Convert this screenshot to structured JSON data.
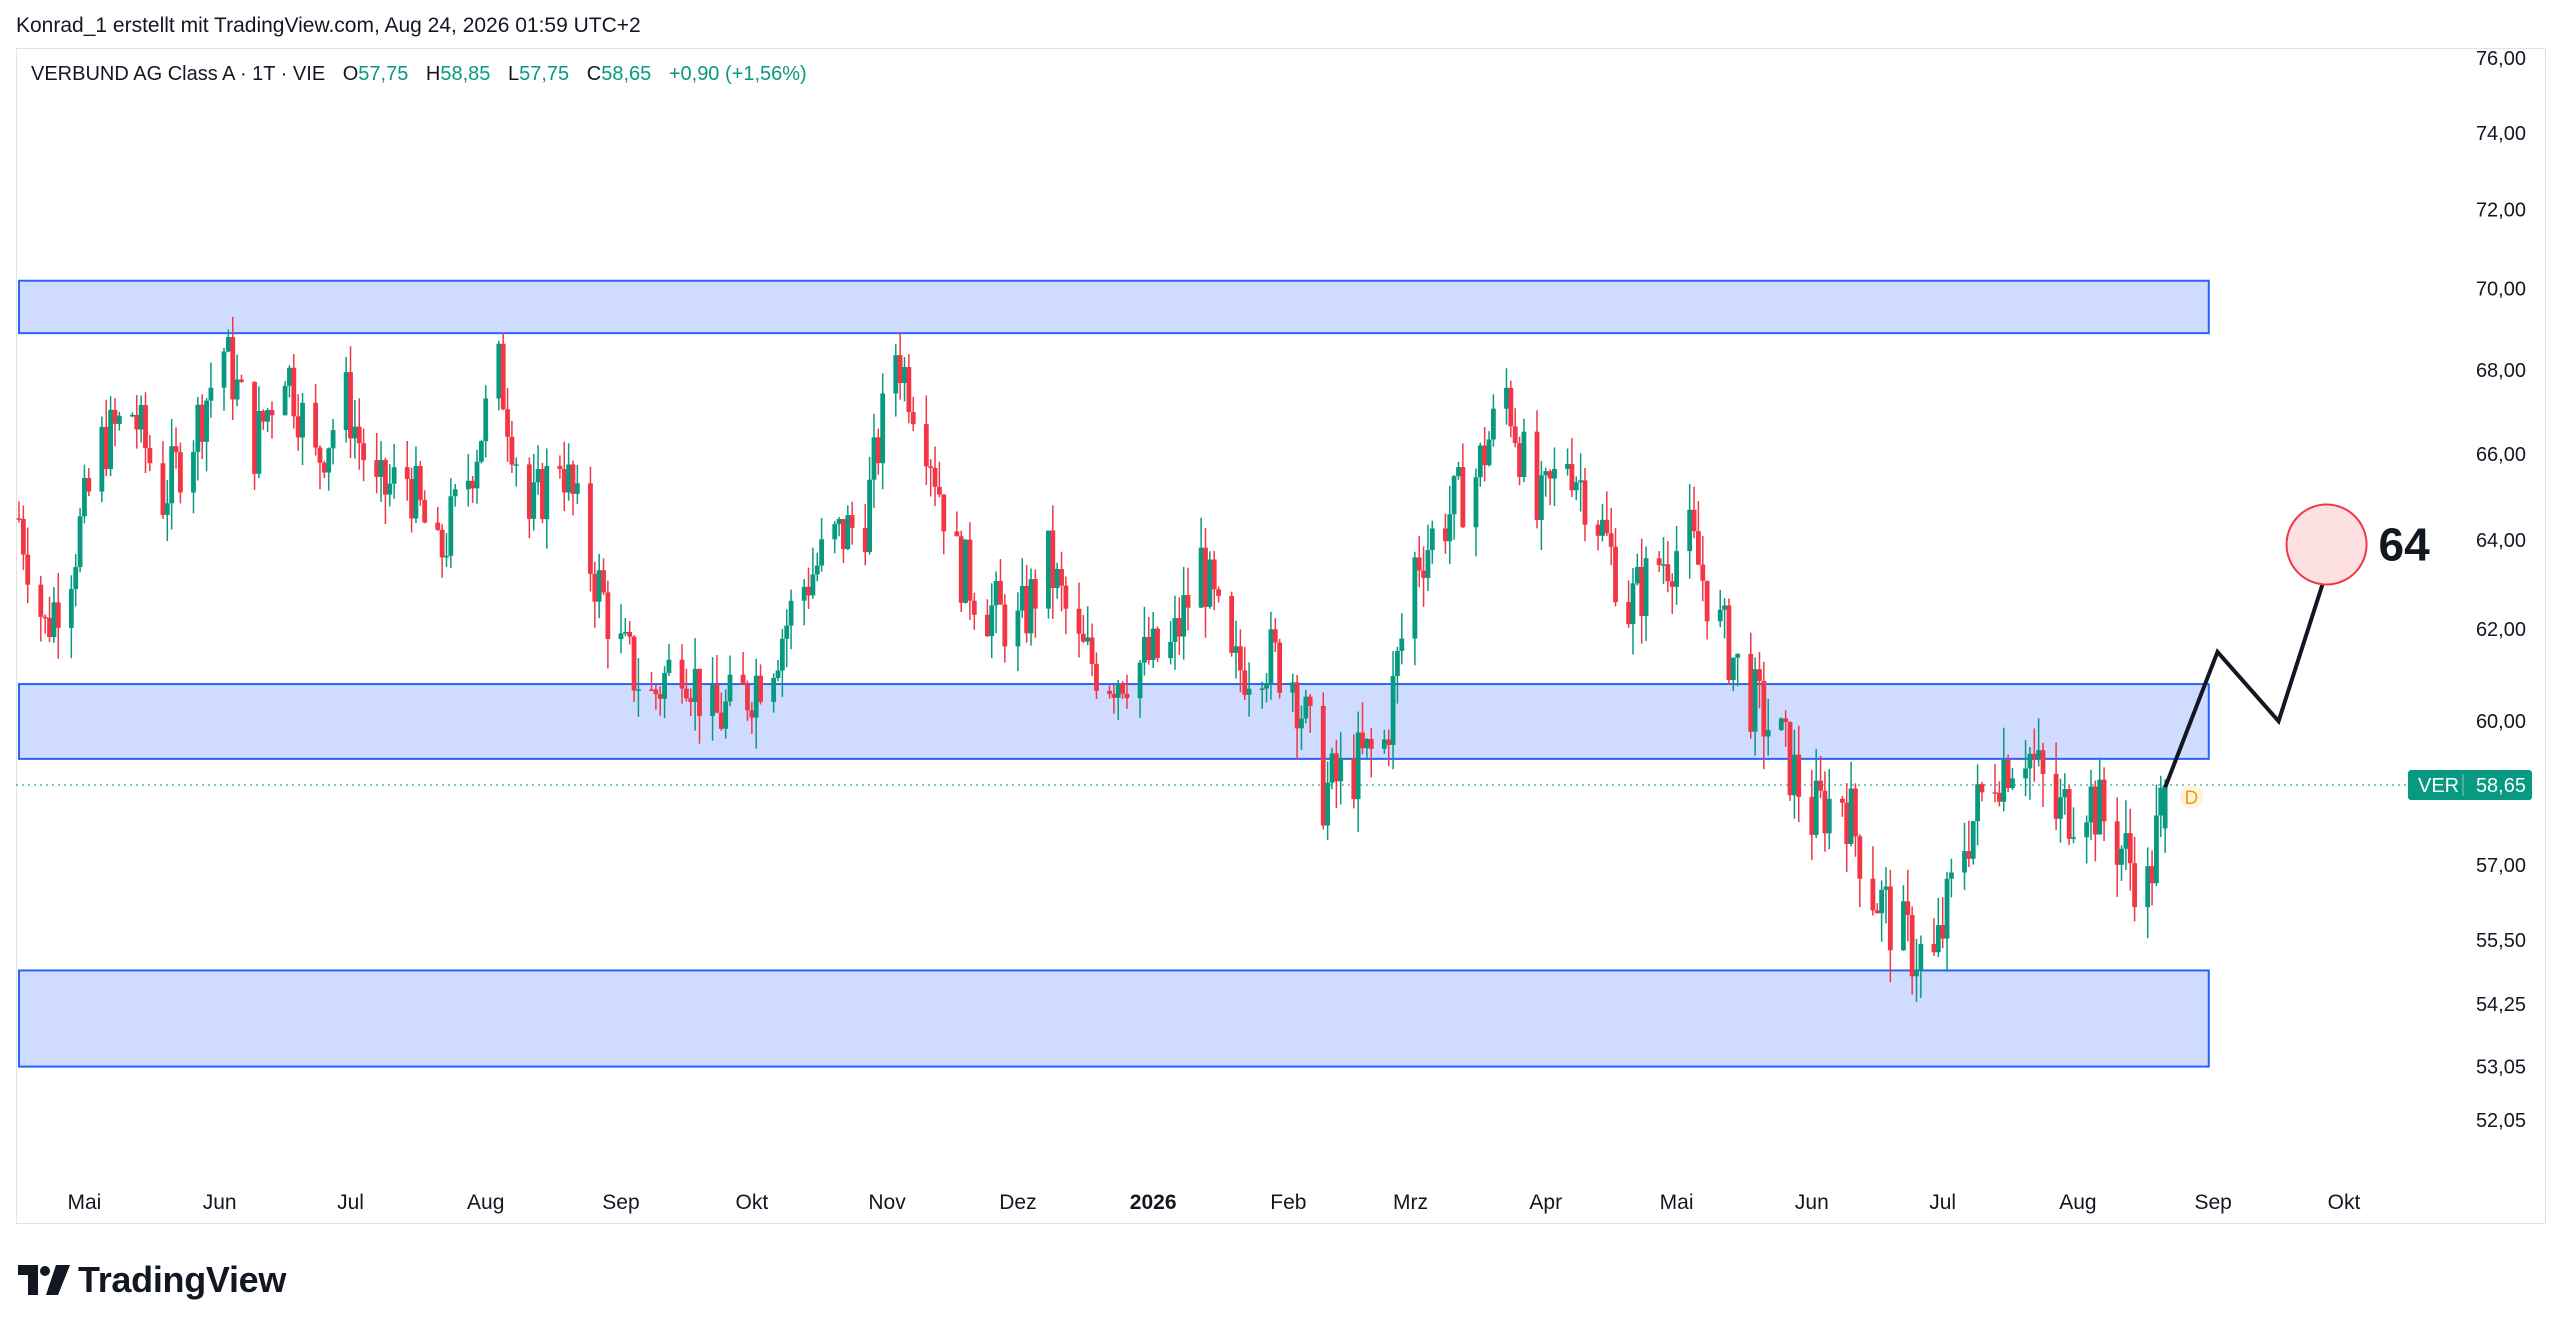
{
  "header": {
    "text": "Konrad_1 erstellt mit TradingView.com, Aug 24, 2026 01:59 UTC+2"
  },
  "legend": {
    "symbol": "VERBUND AG Class A · 1T · VIE",
    "open_label": "O",
    "open_value": "57,75",
    "high_label": "H",
    "high_value": "58,85",
    "low_label": "L",
    "low_value": "57,75",
    "close_label": "C",
    "close_value": "58,65",
    "change": "+0,90 (+1,56%)"
  },
  "price_label": {
    "ticker": "VER",
    "value": "58,65"
  },
  "dividend_marker": "D",
  "target_label": "64",
  "brand": {
    "name": "TradingView"
  },
  "colors": {
    "up": "#089981",
    "down": "#f23645",
    "zone_fill": "#c8d6ff",
    "zone_border": "#2962ff",
    "target": "#f23645"
  },
  "chart_data": {
    "type": "candlestick",
    "y_axis_ticks": [
      "76,00",
      "74,00",
      "72,00",
      "70,00",
      "68,00",
      "66,00",
      "64,00",
      "62,00",
      "60,00",
      "57,00",
      "55,50",
      "54,25",
      "53,05",
      "52,05"
    ],
    "y_tick_values": [
      76.0,
      74.0,
      72.0,
      70.0,
      68.0,
      66.0,
      64.0,
      62.0,
      60.0,
      57.0,
      55.5,
      54.25,
      53.05,
      52.05
    ],
    "y_scale": "log",
    "x_axis_ticks": [
      {
        "label": "Mai",
        "date": "2025-05-01"
      },
      {
        "label": "Jun",
        "date": "2025-06-01"
      },
      {
        "label": "Jul",
        "date": "2025-07-01"
      },
      {
        "label": "Aug",
        "date": "2025-08-01"
      },
      {
        "label": "Sep",
        "date": "2025-09-01"
      },
      {
        "label": "Okt",
        "date": "2025-10-01"
      },
      {
        "label": "Nov",
        "date": "2025-11-01"
      },
      {
        "label": "Dez",
        "date": "2025-12-01"
      },
      {
        "label": "2026",
        "date": "2026-01-01",
        "bold": true
      },
      {
        "label": "Feb",
        "date": "2026-02-01"
      },
      {
        "label": "Mrz",
        "date": "2026-03-01"
      },
      {
        "label": "Apr",
        "date": "2026-04-01"
      },
      {
        "label": "Mai",
        "date": "2026-05-01"
      },
      {
        "label": "Jun",
        "date": "2026-06-01"
      },
      {
        "label": "Jul",
        "date": "2026-07-01"
      },
      {
        "label": "Aug",
        "date": "2026-08-01"
      },
      {
        "label": "Sep",
        "date": "2026-09-01"
      },
      {
        "label": "Okt",
        "date": "2026-10-01"
      }
    ],
    "last_close": 58.65,
    "zones": [
      {
        "from_date": "2025-04-16",
        "to_date": "2026-08-31",
        "low": 68.9,
        "high": 70.2
      },
      {
        "from_date": "2025-04-16",
        "to_date": "2026-08-31",
        "low": 59.2,
        "high": 60.8
      },
      {
        "from_date": "2025-04-16",
        "to_date": "2026-08-31",
        "low": 53.05,
        "high": 54.9
      }
    ],
    "projection": [
      {
        "date": "2026-08-21",
        "value": 58.6
      },
      {
        "date": "2026-09-02",
        "value": 61.5
      },
      {
        "date": "2026-09-16",
        "value": 60.0
      },
      {
        "date": "2026-09-29",
        "value": 63.9
      }
    ],
    "target": {
      "date": "2026-09-27",
      "value": 63.9,
      "label": "64"
    },
    "price_path": [
      [
        "2025-04-16",
        64.5
      ],
      [
        "2025-04-22",
        62.0
      ],
      [
        "2025-04-28",
        63.5
      ],
      [
        "2025-05-05",
        66.2
      ],
      [
        "2025-05-12",
        67.0
      ],
      [
        "2025-05-19",
        65.0
      ],
      [
        "2025-05-26",
        66.5
      ],
      [
        "2025-06-02",
        68.5
      ],
      [
        "2025-06-09",
        66.2
      ],
      [
        "2025-06-16",
        68.2
      ],
      [
        "2025-06-23",
        65.8
      ],
      [
        "2025-06-30",
        67.3
      ],
      [
        "2025-07-07",
        65.0
      ],
      [
        "2025-07-14",
        65.5
      ],
      [
        "2025-07-21",
        63.5
      ],
      [
        "2025-07-28",
        65.5
      ],
      [
        "2025-08-04",
        68.0
      ],
      [
        "2025-08-11",
        64.5
      ],
      [
        "2025-08-18",
        66.0
      ],
      [
        "2025-08-25",
        63.5
      ],
      [
        "2025-09-01",
        61.5
      ],
      [
        "2025-09-08",
        60.5
      ],
      [
        "2025-09-15",
        61.5
      ],
      [
        "2025-09-22",
        60.0
      ],
      [
        "2025-09-29",
        60.5
      ],
      [
        "2025-10-06",
        61.5
      ],
      [
        "2025-10-13",
        63.0
      ],
      [
        "2025-10-20",
        64.0
      ],
      [
        "2025-10-27",
        64.5
      ],
      [
        "2025-11-03",
        68.5
      ],
      [
        "2025-11-10",
        66.5
      ],
      [
        "2025-11-17",
        63.5
      ],
      [
        "2025-11-24",
        62.5
      ],
      [
        "2025-12-01",
        62.0
      ],
      [
        "2025-12-08",
        63.5
      ],
      [
        "2025-12-15",
        61.5
      ],
      [
        "2025-12-22",
        61.0
      ],
      [
        "2026-01-05",
        61.5
      ],
      [
        "2026-01-12",
        63.5
      ],
      [
        "2026-01-19",
        61.0
      ],
      [
        "2026-01-26",
        61.5
      ],
      [
        "2026-02-02",
        61.0
      ],
      [
        "2026-02-09",
        58.5
      ],
      [
        "2026-02-16",
        59.0
      ],
      [
        "2026-02-23",
        59.5
      ],
      [
        "2026-03-02",
        63.5
      ],
      [
        "2026-03-09",
        64.5
      ],
      [
        "2026-03-16",
        65.5
      ],
      [
        "2026-03-23",
        67.5
      ],
      [
        "2026-03-30",
        64.5
      ],
      [
        "2026-04-06",
        66.0
      ],
      [
        "2026-04-13",
        64.5
      ],
      [
        "2026-04-20",
        62.5
      ],
      [
        "2026-04-27",
        63.5
      ],
      [
        "2026-05-04",
        64.0
      ],
      [
        "2026-05-11",
        62.0
      ],
      [
        "2026-05-18",
        60.5
      ],
      [
        "2026-05-25",
        59.5
      ],
      [
        "2026-06-01",
        58.0
      ],
      [
        "2026-06-08",
        58.5
      ],
      [
        "2026-06-15",
        56.5
      ],
      [
        "2026-06-22",
        55.5
      ],
      [
        "2026-06-29",
        55.0
      ],
      [
        "2026-07-06",
        57.5
      ],
      [
        "2026-07-13",
        59.0
      ],
      [
        "2026-07-20",
        59.5
      ],
      [
        "2026-07-27",
        58.0
      ],
      [
        "2026-08-03",
        58.5
      ],
      [
        "2026-08-10",
        57.5
      ],
      [
        "2026-08-17",
        56.5
      ],
      [
        "2026-08-21",
        58.65
      ]
    ]
  }
}
